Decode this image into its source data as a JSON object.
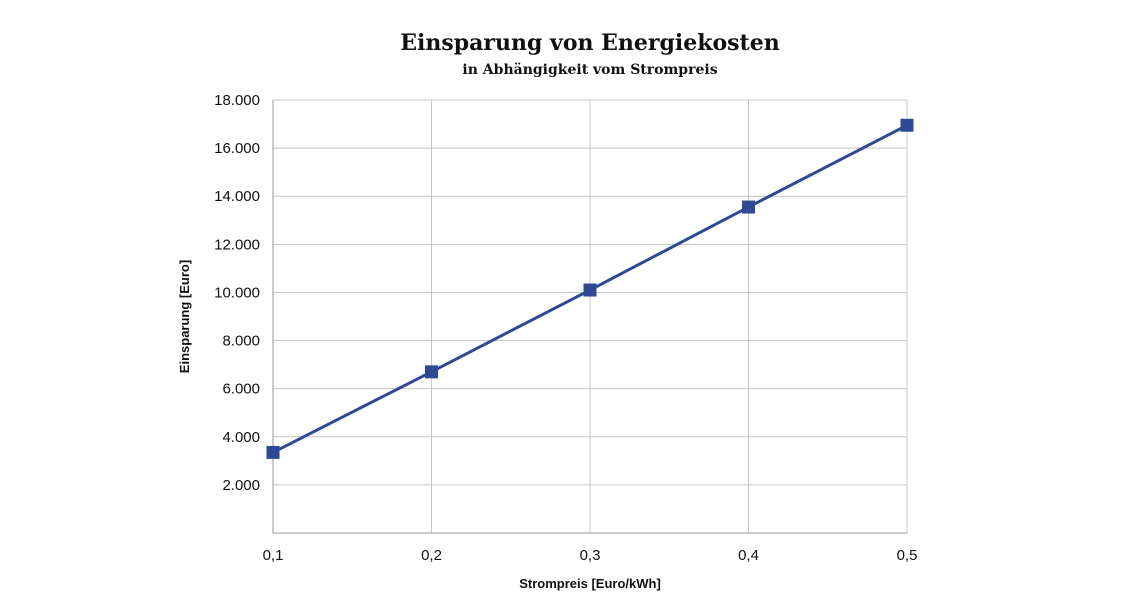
{
  "chart_data": {
    "type": "line",
    "title": "Einsparung von Energiekosten",
    "subtitle": "in Abhängigkeit vom Strompreis",
    "xlabel": "Strompreis [Euro/kWh]",
    "ylabel": "Einsparung [Euro]",
    "x": [
      0.1,
      0.2,
      0.3,
      0.4,
      0.5
    ],
    "x_tick_labels": [
      "0,1",
      "0,2",
      "0,3",
      "0,4",
      "0,5"
    ],
    "y_ticks": [
      2000,
      4000,
      6000,
      8000,
      10000,
      12000,
      14000,
      16000,
      18000
    ],
    "y_tick_labels": [
      "2.000",
      "4.000",
      "6.000",
      "8.000",
      "10.000",
      "12.000",
      "14.000",
      "16.000",
      "18.000"
    ],
    "ylim": [
      0,
      18000
    ],
    "xlim": [
      0.1,
      0.5
    ],
    "grid": true,
    "series": [
      {
        "values": [
          3350,
          6700,
          10100,
          13550,
          16950
        ],
        "color": "#2e4a94",
        "marker": "square"
      }
    ]
  }
}
